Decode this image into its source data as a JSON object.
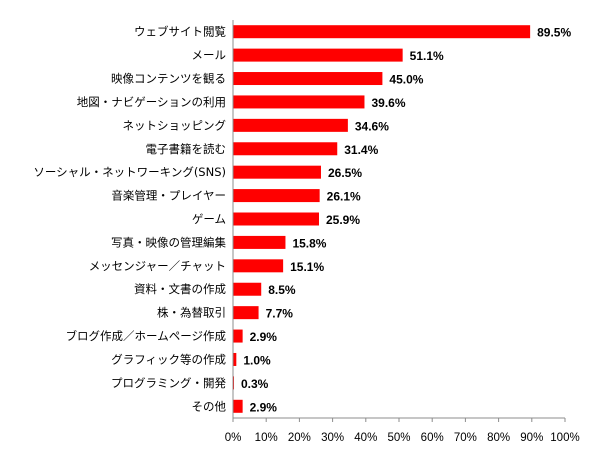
{
  "chart_data": {
    "type": "bar",
    "orientation": "horizontal",
    "title": "",
    "xlabel": "",
    "ylabel": "",
    "xlim": [
      0,
      100
    ],
    "x_tick_values": [
      0,
      10,
      20,
      30,
      40,
      50,
      60,
      70,
      80,
      90,
      100
    ],
    "x_tick_labels": [
      "0%",
      "10%",
      "20%",
      "30%",
      "40%",
      "50%",
      "60%",
      "70%",
      "80%",
      "90%",
      "100%"
    ],
    "categories": [
      "ウェブサイト閲覧",
      "メール",
      "映像コンテンツを観る",
      "地図・ナビゲーションの利用",
      "ネットショッピング",
      "電子書籍を読む",
      "ソーシャル・ネットワーキング(SNS)",
      "音楽管理・プレイヤー",
      "ゲーム",
      "写真・映像の管理編集",
      "メッセンジャー／チャット",
      "資料・文書の作成",
      "株・為替取引",
      "ブログ作成／ホームページ作成",
      "グラフィック等の作成",
      "プログラミング・開発",
      "その他"
    ],
    "values": [
      89.5,
      51.1,
      45.0,
      39.6,
      34.6,
      31.4,
      26.5,
      26.1,
      25.9,
      15.8,
      15.1,
      8.5,
      7.7,
      2.9,
      1.0,
      0.3,
      2.9
    ],
    "value_labels": [
      "89.5%",
      "51.1%",
      "45.0%",
      "39.6%",
      "34.6%",
      "31.4%",
      "26.5%",
      "26.1%",
      "25.9%",
      "15.8%",
      "15.1%",
      "8.5%",
      "7.7%",
      "2.9%",
      "1.0%",
      "0.3%",
      "2.9%"
    ],
    "bar_color": "#ff0000",
    "grid": false,
    "legend": "none"
  }
}
